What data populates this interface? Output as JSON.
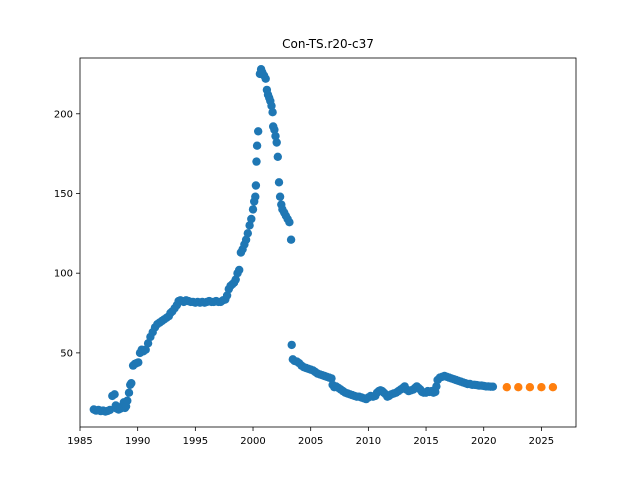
{
  "chart_data": {
    "type": "scatter",
    "title": "Con-TS.r20-c37",
    "xlabel": "",
    "ylabel": "",
    "xlim": [
      1985.0,
      2028.0
    ],
    "ylim": [
      3.5,
      235.0
    ],
    "xticks": [
      1985,
      1990,
      1995,
      2000,
      2005,
      2010,
      2015,
      2020,
      2025
    ],
    "yticks": [
      50,
      100,
      150,
      200
    ],
    "grid": false,
    "legend": "none",
    "series": [
      {
        "color": "#1f77b4",
        "points": [
          [
            1986.2,
            14.5
          ],
          [
            1986.4,
            13.8
          ],
          [
            1986.6,
            14.2
          ],
          [
            1986.8,
            13.5
          ],
          [
            1987.0,
            13.8
          ],
          [
            1987.2,
            13.2
          ],
          [
            1987.4,
            13.6
          ],
          [
            1987.6,
            14.2
          ],
          [
            1987.8,
            23.0
          ],
          [
            1988.0,
            24.0
          ],
          [
            1988.1,
            17.0
          ],
          [
            1988.2,
            15.0
          ],
          [
            1988.35,
            14.5
          ],
          [
            1988.5,
            15.0
          ],
          [
            1988.65,
            16.5
          ],
          [
            1988.8,
            19.0
          ],
          [
            1988.9,
            15.5
          ],
          [
            1989.0,
            16.5
          ],
          [
            1989.1,
            20.0
          ],
          [
            1989.25,
            25.0
          ],
          [
            1989.35,
            30.0
          ],
          [
            1989.45,
            31.0
          ],
          [
            1989.6,
            42.0
          ],
          [
            1989.75,
            43.0
          ],
          [
            1989.9,
            43.5
          ],
          [
            1990.05,
            44.0
          ],
          [
            1990.2,
            50.0
          ],
          [
            1990.35,
            52.0
          ],
          [
            1990.5,
            51.0
          ],
          [
            1990.7,
            52.0
          ],
          [
            1990.9,
            56.0
          ],
          [
            1991.1,
            60.0
          ],
          [
            1991.3,
            63.0
          ],
          [
            1991.5,
            66.0
          ],
          [
            1991.7,
            68.0
          ],
          [
            1991.9,
            69.0
          ],
          [
            1992.1,
            70.0
          ],
          [
            1992.3,
            71.0
          ],
          [
            1992.5,
            72.0
          ],
          [
            1992.7,
            73.0
          ],
          [
            1992.85,
            75.0
          ],
          [
            1993.0,
            76.0
          ],
          [
            1993.2,
            78.0
          ],
          [
            1993.4,
            80.0
          ],
          [
            1993.55,
            82.5
          ],
          [
            1993.7,
            83.0
          ],
          [
            1993.85,
            82.5
          ],
          [
            1994.0,
            82.0
          ],
          [
            1994.2,
            83.0
          ],
          [
            1994.4,
            82.5
          ],
          [
            1994.6,
            82.0
          ],
          [
            1994.8,
            82.0
          ],
          [
            1995.0,
            81.5
          ],
          [
            1995.2,
            82.0
          ],
          [
            1995.4,
            81.5
          ],
          [
            1995.6,
            82.0
          ],
          [
            1995.8,
            81.5
          ],
          [
            1996.0,
            82.0
          ],
          [
            1996.2,
            82.5
          ],
          [
            1996.4,
            82.0
          ],
          [
            1996.6,
            82.0
          ],
          [
            1996.8,
            82.5
          ],
          [
            1997.0,
            82.0
          ],
          [
            1997.2,
            82.0
          ],
          [
            1997.4,
            83.0
          ],
          [
            1997.6,
            83.5
          ],
          [
            1997.75,
            86.0
          ],
          [
            1997.9,
            90.0
          ],
          [
            1998.05,
            92.0
          ],
          [
            1998.2,
            93.0
          ],
          [
            1998.35,
            94.0
          ],
          [
            1998.5,
            96.0
          ],
          [
            1998.65,
            100.0
          ],
          [
            1998.8,
            102.0
          ],
          [
            1998.95,
            113.0
          ],
          [
            1999.1,
            115.0
          ],
          [
            1999.25,
            118.0
          ],
          [
            1999.4,
            121.0
          ],
          [
            1999.55,
            125.0
          ],
          [
            1999.7,
            130.0
          ],
          [
            1999.85,
            134.0
          ],
          [
            2000.0,
            140.0
          ],
          [
            2000.1,
            145.0
          ],
          [
            2000.2,
            148.0
          ],
          [
            2000.25,
            155.0
          ],
          [
            2000.3,
            170.0
          ],
          [
            2000.35,
            180.0
          ],
          [
            2000.45,
            189.0
          ],
          [
            2000.6,
            225.0
          ],
          [
            2000.7,
            228.0
          ],
          [
            2000.8,
            226.0
          ],
          [
            2000.95,
            224.0
          ],
          [
            2001.1,
            222.0
          ],
          [
            2001.2,
            215.0
          ],
          [
            2001.3,
            212.0
          ],
          [
            2001.4,
            210.0
          ],
          [
            2001.5,
            208.0
          ],
          [
            2001.6,
            205.0
          ],
          [
            2001.7,
            201.0
          ],
          [
            2001.75,
            192.0
          ],
          [
            2001.85,
            190.0
          ],
          [
            2001.95,
            186.0
          ],
          [
            2002.05,
            182.0
          ],
          [
            2002.15,
            173.0
          ],
          [
            2002.25,
            157.0
          ],
          [
            2002.35,
            148.0
          ],
          [
            2002.45,
            143.0
          ],
          [
            2002.55,
            140.0
          ],
          [
            2002.7,
            138.0
          ],
          [
            2002.85,
            136.0
          ],
          [
            2003.0,
            134.0
          ],
          [
            2003.15,
            132.0
          ],
          [
            2003.3,
            121.0
          ],
          [
            2003.35,
            55.0
          ],
          [
            2003.45,
            46.0
          ],
          [
            2003.6,
            45.0
          ],
          [
            2003.8,
            44.5
          ],
          [
            2004.0,
            43.5
          ],
          [
            2004.2,
            42.0
          ],
          [
            2004.4,
            41.0
          ],
          [
            2004.6,
            40.5
          ],
          [
            2004.8,
            40.0
          ],
          [
            2005.0,
            39.5
          ],
          [
            2005.2,
            39.0
          ],
          [
            2005.4,
            38.0
          ],
          [
            2005.6,
            37.0
          ],
          [
            2005.8,
            36.5
          ],
          [
            2006.0,
            36.0
          ],
          [
            2006.2,
            35.5
          ],
          [
            2006.4,
            35.0
          ],
          [
            2006.6,
            34.5
          ],
          [
            2006.8,
            34.0
          ],
          [
            2006.9,
            30.0
          ],
          [
            2007.05,
            28.5
          ],
          [
            2007.2,
            29.0
          ],
          [
            2007.4,
            28.0
          ],
          [
            2007.6,
            27.0
          ],
          [
            2007.8,
            26.0
          ],
          [
            2008.0,
            25.0
          ],
          [
            2008.2,
            24.5
          ],
          [
            2008.4,
            24.0
          ],
          [
            2008.6,
            23.5
          ],
          [
            2008.8,
            23.0
          ],
          [
            2009.0,
            22.5
          ],
          [
            2009.2,
            22.5
          ],
          [
            2009.4,
            22.0
          ],
          [
            2009.6,
            21.5
          ],
          [
            2009.8,
            21.0
          ],
          [
            2010.0,
            22.0
          ],
          [
            2010.2,
            23.0
          ],
          [
            2010.4,
            22.5
          ],
          [
            2010.6,
            23.0
          ],
          [
            2010.75,
            25.0
          ],
          [
            2010.9,
            26.0
          ],
          [
            2011.05,
            26.5
          ],
          [
            2011.2,
            26.0
          ],
          [
            2011.35,
            25.0
          ],
          [
            2011.5,
            24.0
          ],
          [
            2011.65,
            22.5
          ],
          [
            2011.8,
            23.0
          ],
          [
            2012.0,
            24.0
          ],
          [
            2012.2,
            24.5
          ],
          [
            2012.4,
            25.0
          ],
          [
            2012.6,
            26.0
          ],
          [
            2012.8,
            27.0
          ],
          [
            2013.0,
            28.0
          ],
          [
            2013.15,
            29.0
          ],
          [
            2013.3,
            27.0
          ],
          [
            2013.5,
            26.0
          ],
          [
            2013.7,
            26.5
          ],
          [
            2013.9,
            27.0
          ],
          [
            2014.05,
            28.0
          ],
          [
            2014.2,
            29.0
          ],
          [
            2014.35,
            28.0
          ],
          [
            2014.5,
            27.0
          ],
          [
            2014.65,
            25.5
          ],
          [
            2014.8,
            25.0
          ],
          [
            2015.0,
            25.0
          ],
          [
            2015.15,
            26.0
          ],
          [
            2015.3,
            25.5
          ],
          [
            2015.5,
            26.0
          ],
          [
            2015.65,
            25.0
          ],
          [
            2015.8,
            25.5
          ],
          [
            2015.9,
            29.0
          ],
          [
            2016.0,
            33.0
          ],
          [
            2016.2,
            34.5
          ],
          [
            2016.4,
            35.0
          ],
          [
            2016.6,
            35.5
          ],
          [
            2016.8,
            35.0
          ],
          [
            2017.0,
            34.5
          ],
          [
            2017.2,
            34.0
          ],
          [
            2017.4,
            33.5
          ],
          [
            2017.6,
            33.0
          ],
          [
            2017.8,
            32.5
          ],
          [
            2018.0,
            32.0
          ],
          [
            2018.2,
            31.5
          ],
          [
            2018.4,
            31.0
          ],
          [
            2018.6,
            30.5
          ],
          [
            2018.8,
            30.5
          ],
          [
            2019.0,
            30.0
          ],
          [
            2019.2,
            30.0
          ],
          [
            2019.4,
            29.8
          ],
          [
            2019.6,
            29.5
          ],
          [
            2019.8,
            29.5
          ],
          [
            2020.0,
            29.3
          ],
          [
            2020.2,
            29.0
          ],
          [
            2020.4,
            29.0
          ],
          [
            2020.6,
            28.8
          ],
          [
            2020.8,
            28.8
          ]
        ]
      },
      {
        "color": "#ff7f0e",
        "points": [
          [
            2022.0,
            28.5
          ],
          [
            2023.0,
            28.5
          ],
          [
            2024.0,
            28.5
          ],
          [
            2025.0,
            28.5
          ],
          [
            2026.0,
            28.5
          ]
        ]
      }
    ]
  }
}
